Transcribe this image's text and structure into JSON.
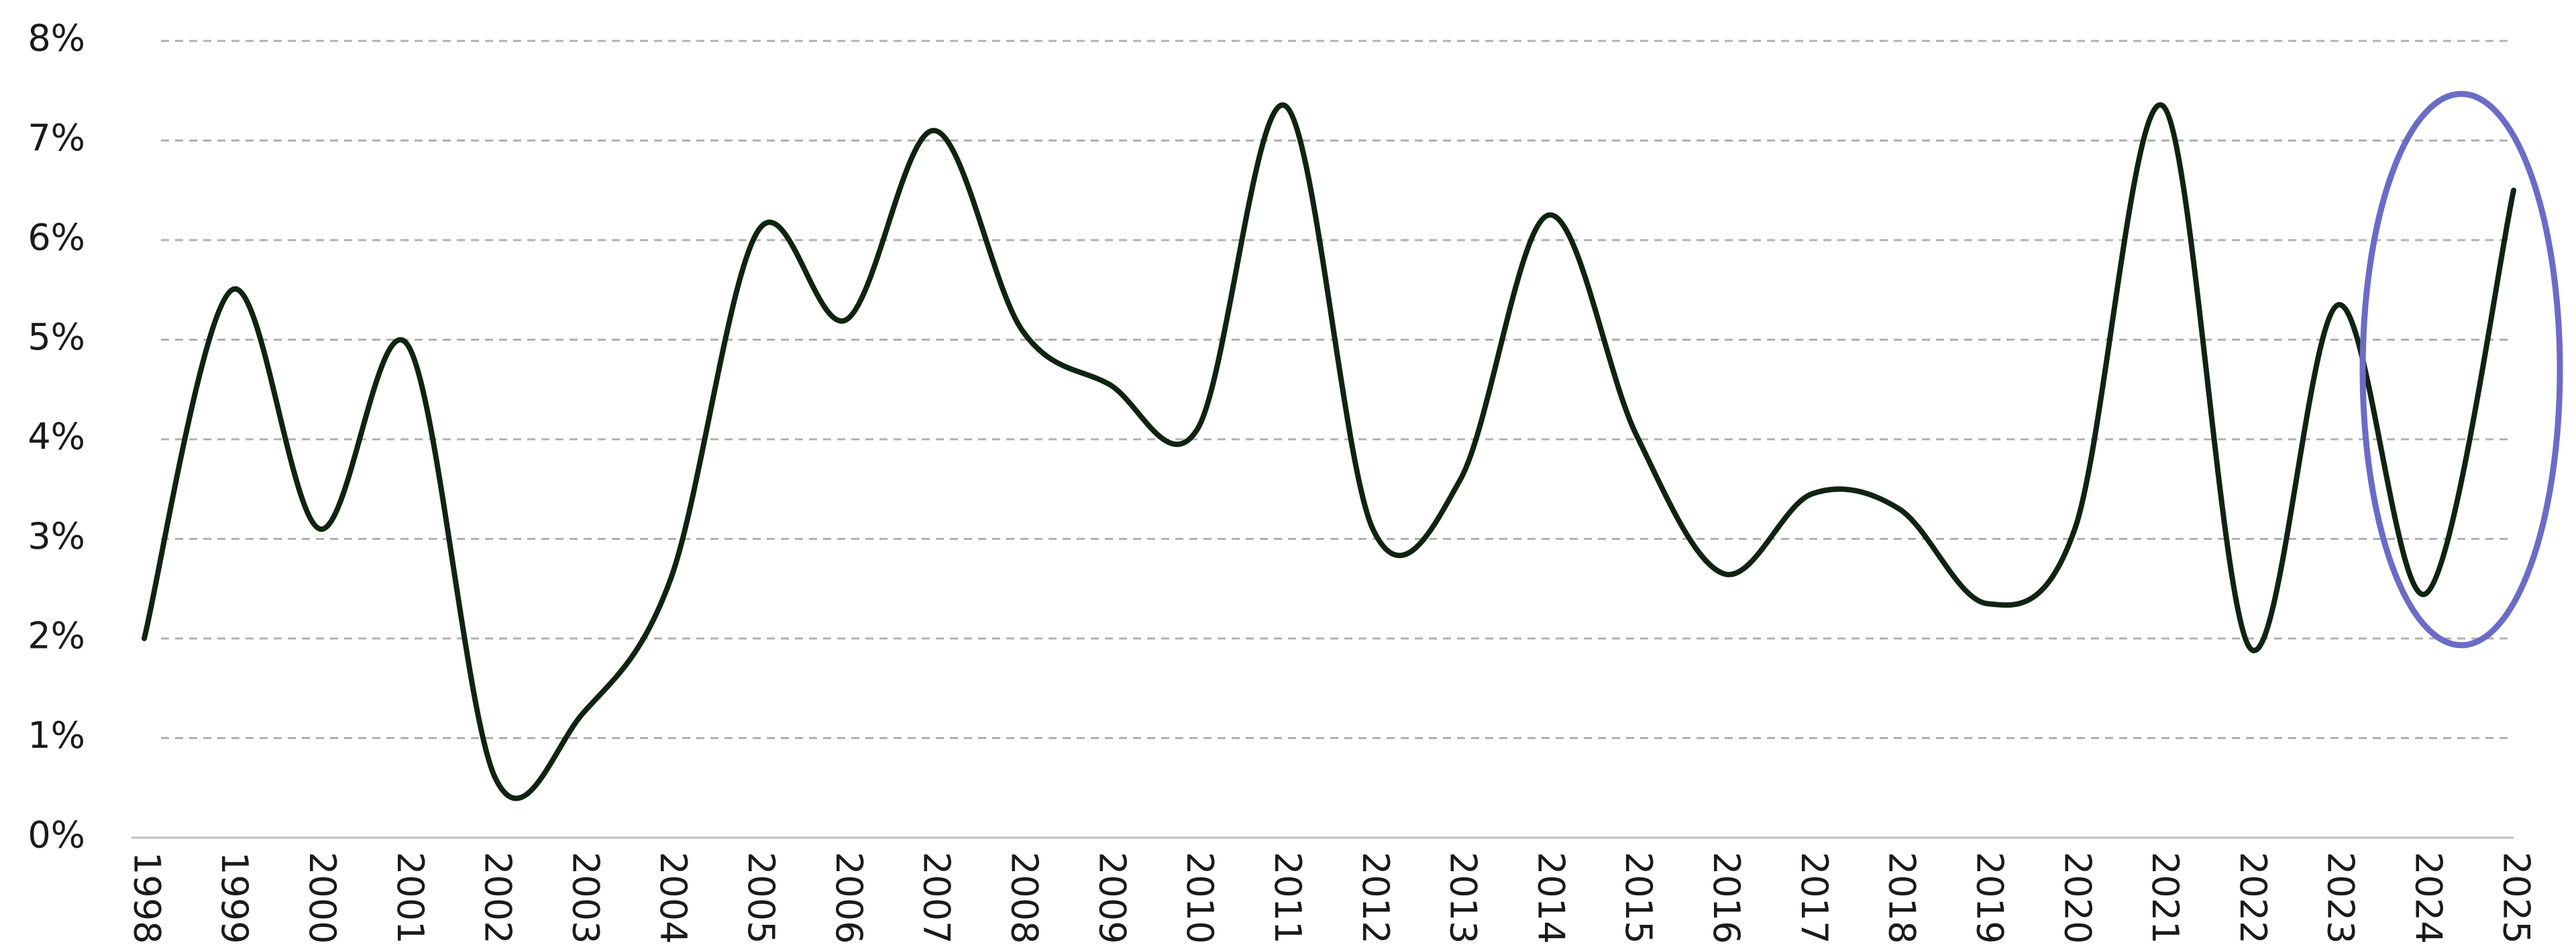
{
  "chart_data": {
    "type": "line",
    "categories": [
      "1998",
      "1999",
      "2000",
      "2001",
      "2002",
      "2003",
      "2004",
      "2005",
      "2006",
      "2007",
      "2008",
      "2009",
      "2010",
      "2011",
      "2012",
      "2013",
      "2014",
      "2015",
      "2016",
      "2017",
      "2018",
      "2019",
      "2020",
      "2021",
      "2022",
      "2023",
      "2024",
      "2025"
    ],
    "series": [
      {
        "color": "#0f2410",
        "values": [
          2.0,
          5.5,
          3.1,
          4.95,
          0.6,
          1.25,
          2.6,
          6.1,
          5.2,
          7.1,
          5.1,
          4.55,
          4.1,
          7.35,
          3.1,
          3.6,
          6.25,
          4.05,
          2.65,
          3.45,
          3.3,
          2.35,
          3.1,
          7.35,
          1.9,
          5.35,
          2.45,
          6.5
        ]
      }
    ],
    "ylim": [
      0,
      8
    ],
    "yticks": [
      {
        "value": 0,
        "label": "0%"
      },
      {
        "value": 1,
        "label": "1%"
      },
      {
        "value": 2,
        "label": "2%"
      },
      {
        "value": 3,
        "label": "3%"
      },
      {
        "value": 4,
        "label": "4%"
      },
      {
        "value": 5,
        "label": "5%"
      },
      {
        "value": 6,
        "label": "6%"
      },
      {
        "value": 7,
        "label": "7%"
      },
      {
        "value": 8,
        "label": "8%"
      }
    ],
    "grid": true
  }
}
